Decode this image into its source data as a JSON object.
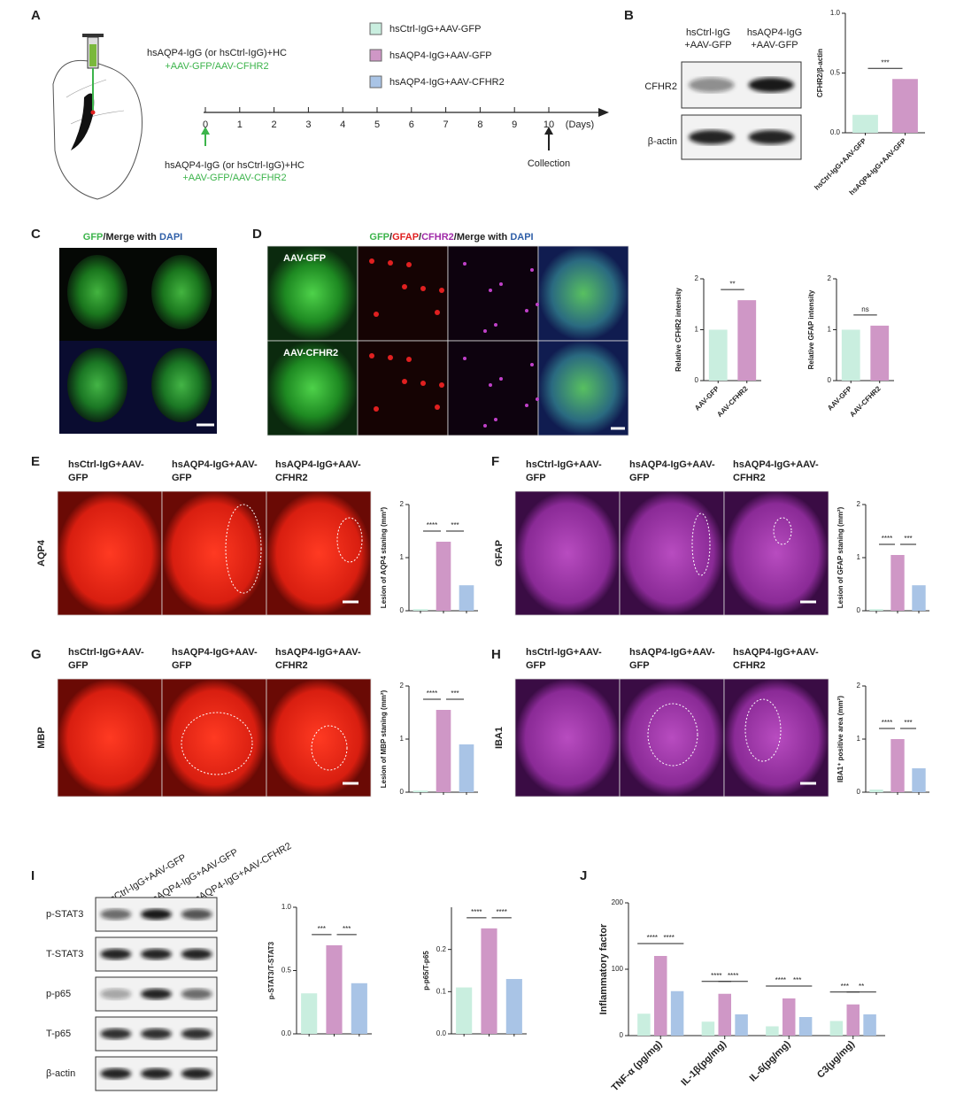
{
  "figure": {
    "letters": [
      "A",
      "B",
      "C",
      "D",
      "E",
      "F",
      "G",
      "H",
      "I",
      "J"
    ],
    "A": {
      "inj_top": [
        "hsAQP4-IgG (or hsCtrl-IgG)+HC",
        "+AAV-GFP/AAV-CFHR2"
      ],
      "days": [
        0,
        1,
        2,
        3,
        4,
        5,
        6,
        7,
        8,
        9,
        10
      ],
      "days_unit": "(Days)",
      "inj_bottom": [
        "hsAQP4-IgG (or hsCtrl-IgG)+HC",
        "+AAV-GFP/AAV-CFHR2"
      ],
      "collection": "Collection",
      "legend": [
        "hsCtrl-IgG+AAV-GFP",
        "hsAQP4-IgG+AAV-GFP",
        "hsAQP4-IgG+AAV-CFHR2"
      ],
      "legend_colors": [
        "#c9eedf",
        "#cf97c6",
        "#a9c4e6"
      ]
    },
    "B": {
      "columns": [
        [
          "hsCtrl-IgG",
          "+AAV-GFP"
        ],
        [
          "hsAQP4-IgG",
          "+AAV-GFP"
        ]
      ],
      "rows": [
        "CFHR2",
        "β-actin"
      ]
    },
    "C": {
      "title": [
        {
          "text": "GFP",
          "color": "#3cb44b"
        },
        {
          "text": "/Merge with ",
          "color": "#222222"
        },
        {
          "text": "DAPI",
          "color": "#2f5fa8"
        }
      ]
    },
    "D": {
      "title": [
        {
          "text": "GFP",
          "color": "#3cb44b"
        },
        {
          "text": "/",
          "color": "#222222"
        },
        {
          "text": "GFAP",
          "color": "#e02020"
        },
        {
          "text": "/",
          "color": "#222222"
        },
        {
          "text": "CFHR2",
          "color": "#a02aa8"
        },
        {
          "text": "/Merge with ",
          "color": "#222222"
        },
        {
          "text": "DAPI",
          "color": "#2f5fa8"
        }
      ],
      "rows": [
        "AAV-GFP",
        "AAV-CFHR2"
      ]
    },
    "E": {
      "columns": [
        [
          "hsCtrl-IgG+AAV-",
          "GFP"
        ],
        [
          "hsAQP4-IgG+AAV-",
          "GFP"
        ],
        [
          "hsAQP4-IgG+AAV-",
          "CFHR2"
        ]
      ],
      "stain": "AQP4",
      "stain_color": "#e8301e"
    },
    "F": {
      "columns": [
        [
          "hsCtrl-IgG+AAV-",
          "GFP"
        ],
        [
          "hsAQP4-IgG+AAV-",
          "GFP"
        ],
        [
          "hsAQP4-IgG+AAV-",
          "CFHR2"
        ]
      ],
      "stain": "GFAP",
      "stain_color": "#b040b8"
    },
    "G": {
      "columns": [
        [
          "hsCtrl-IgG+AAV-",
          "GFP"
        ],
        [
          "hsAQP4-IgG+AAV-",
          "GFP"
        ],
        [
          "hsAQP4-IgG+AAV-",
          "CFHR2"
        ]
      ],
      "stain": "MBP",
      "stain_color": "#e8301e"
    },
    "H": {
      "columns": [
        [
          "hsCtrl-IgG+AAV-",
          "GFP"
        ],
        [
          "hsAQP4-IgG+AAV-",
          "GFP"
        ],
        [
          "hsAQP4-IgG+AAV-",
          "CFHR2"
        ]
      ],
      "stain": "IBA1",
      "stain_color": "#b040b8"
    },
    "I": {
      "columns": [
        "hsCtrl-IgG+AAV-GFP",
        "hsAQP4-IgG+AAV-GFP",
        "hsAQP4-IgG+AAV-CFHR2"
      ],
      "rows": [
        "p-STAT3",
        "T-STAT3",
        "p-p65",
        "T-p65",
        "β-actin"
      ]
    }
  },
  "chart_data": [
    {
      "type": "bar",
      "ylabel": "CFHR2/β-actin",
      "categories": [
        "hsCtrl-IgG+AAV-GFP",
        "hsAQP4-IgG+AAV-GFP"
      ],
      "values": [
        0.15,
        0.45
      ],
      "colors": [
        "#c9eedf",
        "#cf97c6"
      ],
      "ylim": [
        0,
        1
      ],
      "yticks": [
        {
          "value": 0,
          "label": "0.0"
        },
        0.5,
        {
          "value": 1,
          "label": "1.0"
        }
      ],
      "significance": [
        "***"
      ]
    },
    {
      "type": "bar",
      "ylabel": "Relative CFHR2 intensity",
      "categories": [
        "AAV-GFP",
        "AAV-CFHR2"
      ],
      "values": [
        1.0,
        1.58
      ],
      "colors": [
        "#c9eedf",
        "#cf97c6"
      ],
      "ylim": [
        0,
        2
      ],
      "yticks": [
        0,
        1,
        2
      ],
      "significance": [
        "**"
      ]
    },
    {
      "type": "bar",
      "ylabel": "Relative GFAP intensity",
      "categories": [
        "AAV-GFP",
        "AAV-CFHR2"
      ],
      "values": [
        1.0,
        1.08
      ],
      "colors": [
        "#c9eedf",
        "#cf97c6"
      ],
      "ylim": [
        0,
        2
      ],
      "yticks": [
        0,
        1,
        2
      ],
      "significance": [
        "ns"
      ]
    },
    {
      "type": "bar",
      "ylabel": "Lesion of AQP4 staning (mm²)",
      "values": [
        0.03,
        1.3,
        0.48
      ],
      "colors": [
        "#c9eedf",
        "#cf97c6",
        "#a9c4e6"
      ],
      "ylim": [
        0,
        2
      ],
      "yticks": [
        0,
        1,
        2
      ],
      "significance": [
        "****",
        "***"
      ]
    },
    {
      "type": "bar",
      "ylabel": "Lesion of GFAP staning (mm²)",
      "values": [
        0.03,
        1.05,
        0.48
      ],
      "colors": [
        "#c9eedf",
        "#cf97c6",
        "#a9c4e6"
      ],
      "ylim": [
        0,
        2
      ],
      "yticks": [
        0,
        1,
        2
      ],
      "significance": [
        "****",
        "***"
      ]
    },
    {
      "type": "bar",
      "ylabel": "Lesion of MBP staning (mm²)",
      "values": [
        0.03,
        1.55,
        0.9
      ],
      "colors": [
        "#c9eedf",
        "#cf97c6",
        "#a9c4e6"
      ],
      "ylim": [
        0,
        2
      ],
      "yticks": [
        0,
        1,
        2
      ],
      "significance": [
        "****",
        "***"
      ]
    },
    {
      "type": "bar",
      "ylabel": "IBA1⁺ positive area (mm²)",
      "values": [
        0.05,
        1.0,
        0.45
      ],
      "colors": [
        "#c9eedf",
        "#cf97c6",
        "#a9c4e6"
      ],
      "ylim": [
        0,
        2
      ],
      "yticks": [
        0,
        1,
        2
      ],
      "significance": [
        "****",
        "***"
      ]
    },
    {
      "type": "bar",
      "ylabel": "p-STAT3/T-STAT3",
      "values": [
        0.32,
        0.7,
        0.4
      ],
      "colors": [
        "#c9eedf",
        "#cf97c6",
        "#a9c4e6"
      ],
      "ylim": [
        0,
        1
      ],
      "yticks": [
        {
          "value": 0,
          "label": "0.0"
        },
        0.5,
        {
          "value": 1,
          "label": "1.0"
        }
      ],
      "significance": [
        "***",
        "***"
      ]
    },
    {
      "type": "bar",
      "ylabel": "p-p65/T-p65",
      "values": [
        0.11,
        0.25,
        0.13
      ],
      "colors": [
        "#c9eedf",
        "#cf97c6",
        "#a9c4e6"
      ],
      "ylim": [
        0,
        0.3
      ],
      "yticks": [
        {
          "value": 0,
          "label": "0.0"
        },
        0.1,
        0.2
      ],
      "significance": [
        "****",
        "****"
      ]
    },
    {
      "type": "grouped_bar",
      "ylabel": "Inflammatory factor",
      "categories": [
        "TNF-α (pg/mg)",
        "IL-1β(pg/mg)",
        "IL-6(pg/mg)",
        "C3(μg/mg)"
      ],
      "series": [
        {
          "color": "#c9eedf",
          "values": [
            33,
            21,
            14,
            22
          ]
        },
        {
          "color": "#cf97c6",
          "values": [
            120,
            63,
            56,
            47
          ]
        },
        {
          "color": "#a9c4e6",
          "values": [
            67,
            32,
            28,
            32
          ]
        }
      ],
      "ylim": [
        0,
        200
      ],
      "yticks": [
        0,
        100,
        200
      ],
      "significance": [
        [
          "****",
          "****"
        ],
        [
          "****",
          "****"
        ],
        [
          "****",
          "***"
        ],
        [
          "***",
          "**"
        ]
      ]
    }
  ]
}
